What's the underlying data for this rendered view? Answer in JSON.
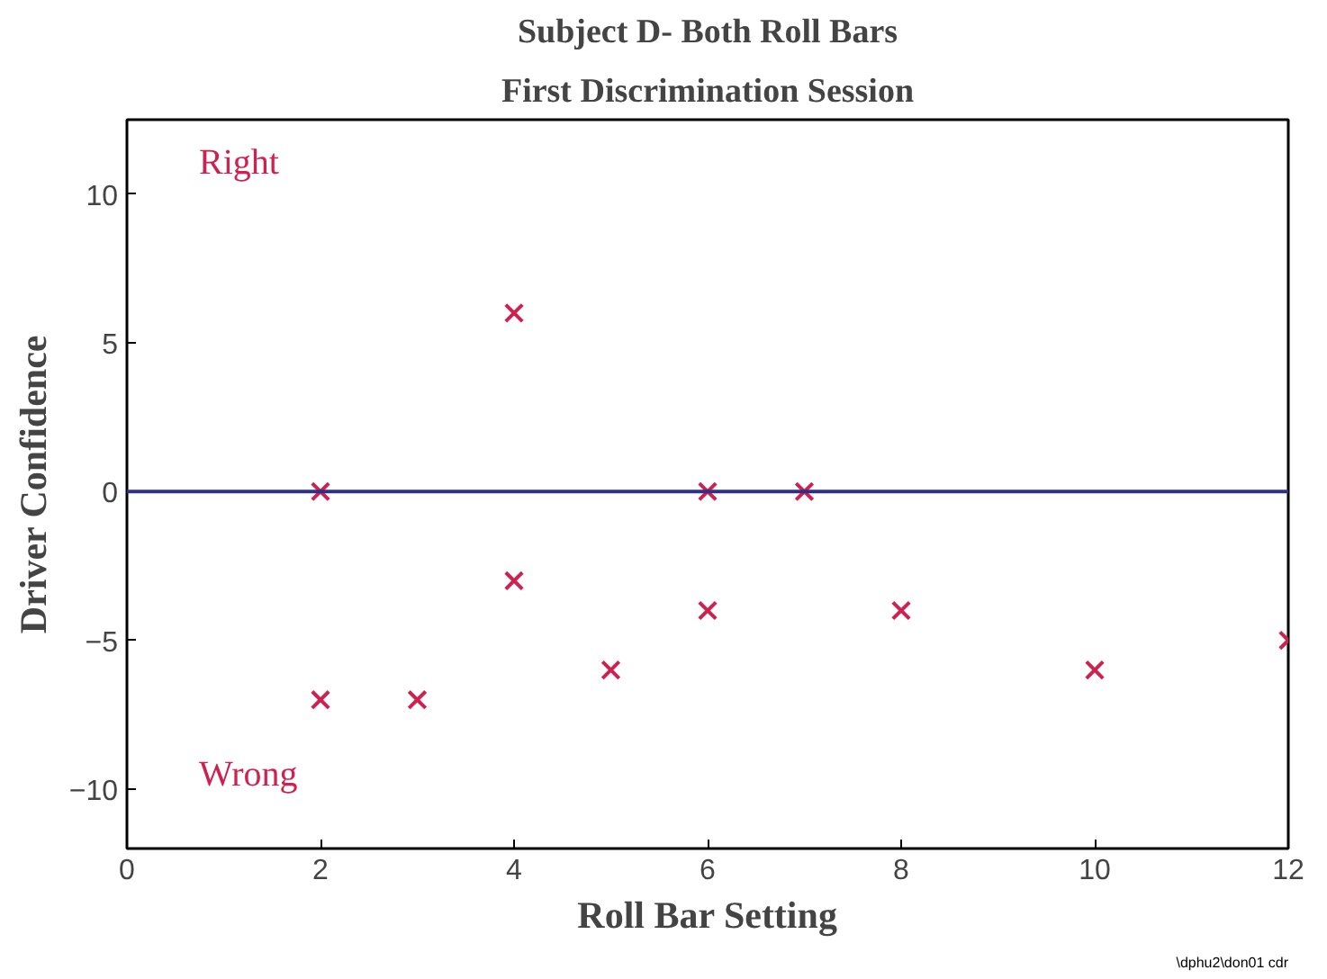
{
  "chart_data": {
    "type": "scatter",
    "title": "Subject D- Both Roll Bars",
    "subtitle": "First Discrimination Session",
    "xlabel": "Roll Bar Setting",
    "ylabel": "Driver Confidence",
    "x": [
      2,
      4,
      6,
      7,
      2,
      3,
      4,
      5,
      6,
      8,
      10,
      12
    ],
    "series": [
      {
        "color": "#d02050",
        "values": [
          0,
          6,
          0,
          0,
          -7,
          -7,
          -3,
          -6,
          -4,
          -4,
          -6,
          -5
        ]
      }
    ],
    "xlim": [
      0,
      12
    ],
    "ylim": [
      -12,
      12.5
    ],
    "xticks": [
      0,
      2,
      4,
      6,
      8,
      10,
      12
    ],
    "yticks": [
      -10,
      -5,
      0,
      5,
      10
    ],
    "ref_lines": [
      {
        "axis": "y",
        "value": 0,
        "color": "#303080"
      }
    ],
    "marker": "cross",
    "grid": false,
    "annotations": [
      "Right",
      "Wrong",
      "\\dphu2\\don01 cdr"
    ]
  }
}
